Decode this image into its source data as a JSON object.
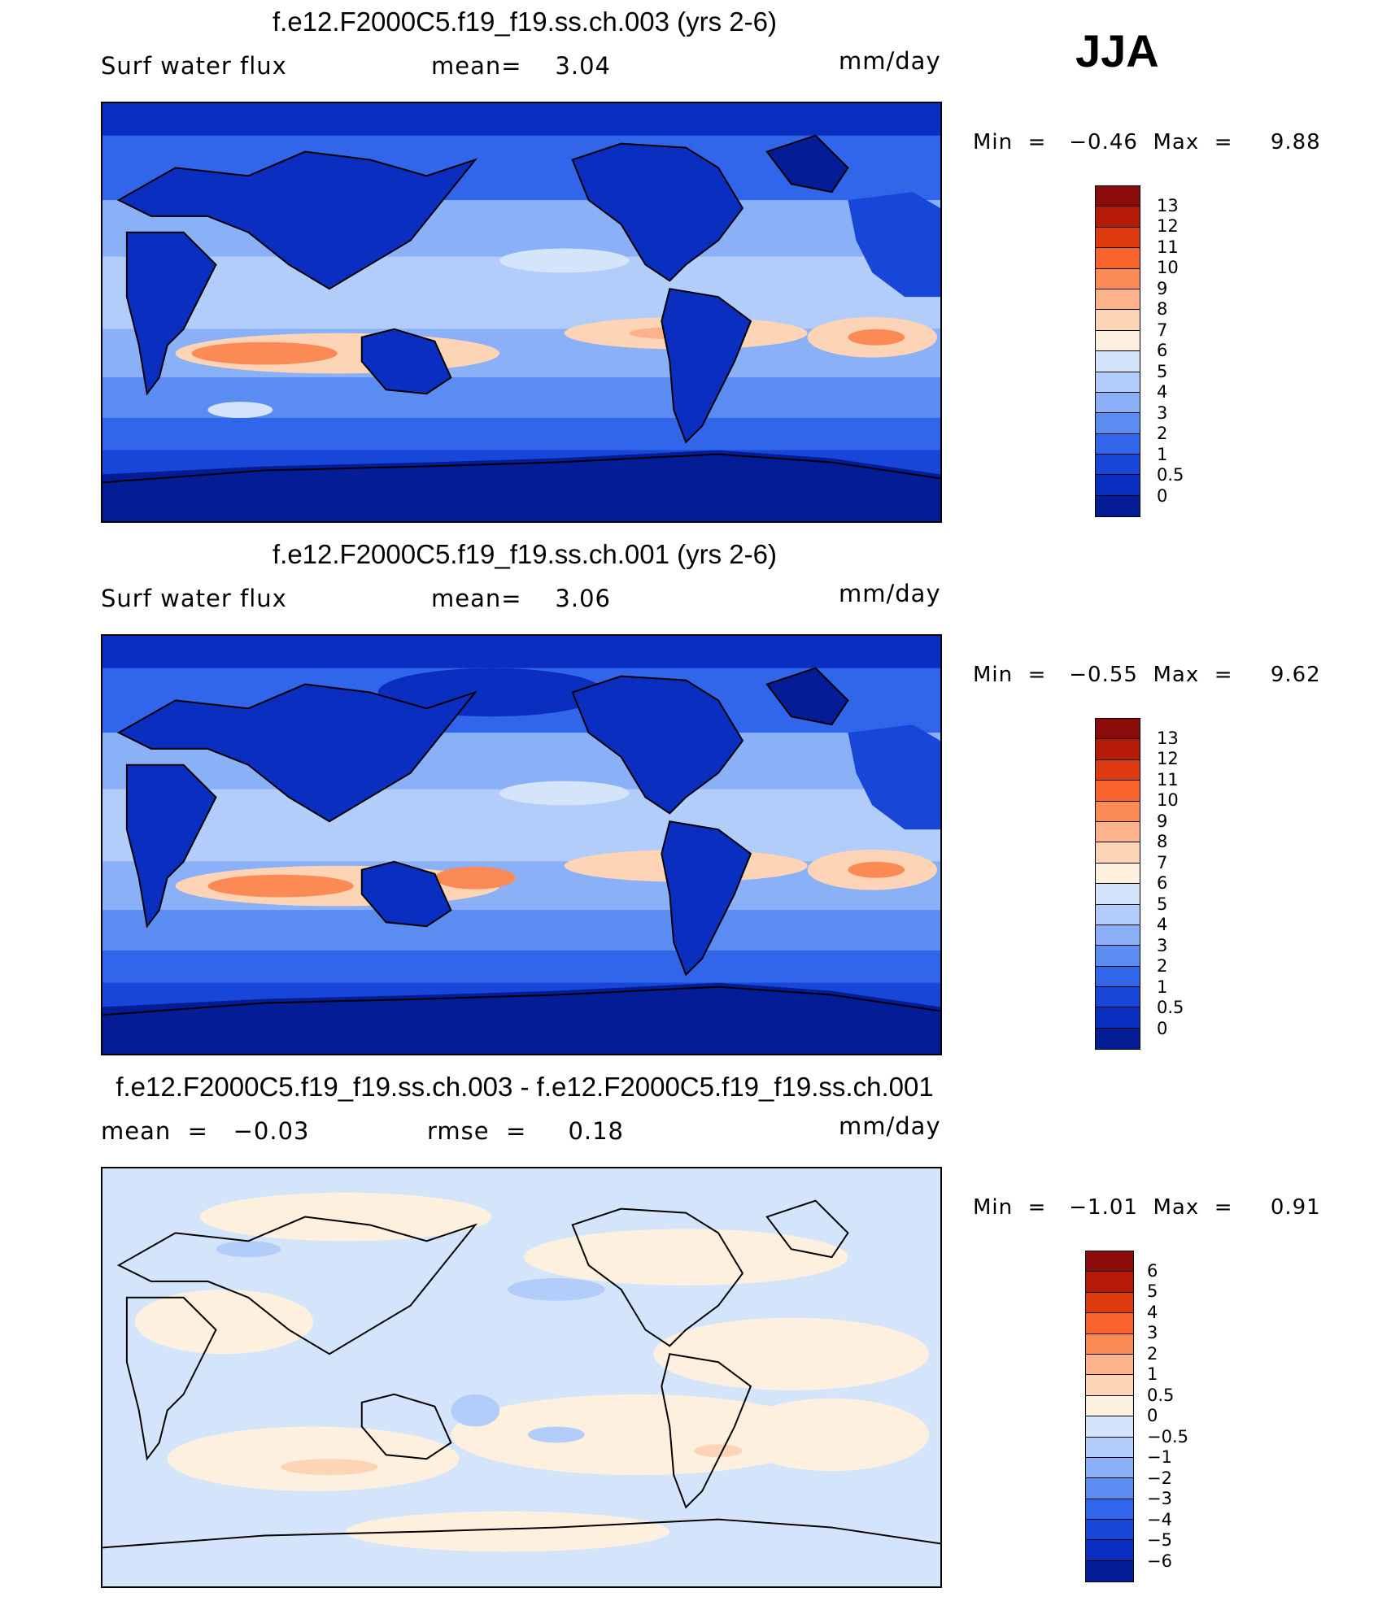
{
  "season": "JJA",
  "panels": [
    {
      "title": "f.e12.F2000C5.f19_f19.ss.ch.003 (yrs 2-6)",
      "left_text": "Surf water flux",
      "mid_text": "mean=    3.04",
      "units": "mm/day",
      "minmax": "Min  =   −0.46  Max  =     9.88",
      "colorbar_labels": [
        "13",
        "12",
        "11",
        "10",
        "9",
        "8",
        "7",
        "6",
        "5",
        "4",
        "3",
        "2",
        "1",
        "0.5",
        "0"
      ],
      "colors": [
        "#8b0a0a",
        "#b51a06",
        "#de3a10",
        "#f8622c",
        "#fb8a55",
        "#fcb38c",
        "#fed4b7",
        "#fef0df",
        "#d4e5fb",
        "#b2cdf9",
        "#8ab0f7",
        "#5b8cf1",
        "#3165ea",
        "#1846d9",
        "#0a2ec0",
        "#041c96"
      ],
      "legend_colors_order": "top-to-bottom",
      "chart_data": {
        "type": "heatmap",
        "field": "Surf water flux",
        "units": "mm/day",
        "mean": 3.04,
        "min": -0.46,
        "max": 9.88,
        "contour_levels": [
          0,
          0.5,
          1,
          2,
          3,
          4,
          5,
          6,
          7,
          8,
          9,
          10,
          11,
          12,
          13
        ]
      }
    },
    {
      "title": "f.e12.F2000C5.f19_f19.ss.ch.001 (yrs 2-6)",
      "left_text": "Surf water flux",
      "mid_text": "mean=    3.06",
      "units": "mm/day",
      "minmax": "Min  =   −0.55  Max  =     9.62",
      "colorbar_labels": [
        "13",
        "12",
        "11",
        "10",
        "9",
        "8",
        "7",
        "6",
        "5",
        "4",
        "3",
        "2",
        "1",
        "0.5",
        "0"
      ],
      "colors": [
        "#8b0a0a",
        "#b51a06",
        "#de3a10",
        "#f8622c",
        "#fb8a55",
        "#fcb38c",
        "#fed4b7",
        "#fef0df",
        "#d4e5fb",
        "#b2cdf9",
        "#8ab0f7",
        "#5b8cf1",
        "#3165ea",
        "#1846d9",
        "#0a2ec0",
        "#041c96"
      ],
      "chart_data": {
        "type": "heatmap",
        "field": "Surf water flux",
        "units": "mm/day",
        "mean": 3.06,
        "min": -0.55,
        "max": 9.62,
        "contour_levels": [
          0,
          0.5,
          1,
          2,
          3,
          4,
          5,
          6,
          7,
          8,
          9,
          10,
          11,
          12,
          13
        ]
      }
    },
    {
      "title": "f.e12.F2000C5.f19_f19.ss.ch.003 - f.e12.F2000C5.f19_f19.ss.ch.001",
      "left_text": "mean  =   −0.03",
      "mid_text": "rmse  =     0.18",
      "units": "mm/day",
      "minmax": "Min  =   −1.01  Max  =     0.91",
      "colorbar_labels": [
        "6",
        "5",
        "4",
        "3",
        "2",
        "1",
        "0.5",
        "0",
        "−0.5",
        "−1",
        "−2",
        "−3",
        "−4",
        "−5",
        "−6"
      ],
      "colors": [
        "#8b0a0a",
        "#b51a06",
        "#de3a10",
        "#f8622c",
        "#fb8a55",
        "#fcb38c",
        "#fed4b7",
        "#fef0df",
        "#d4e5fb",
        "#b2cdf9",
        "#8ab0f7",
        "#5b8cf1",
        "#3165ea",
        "#1846d9",
        "#0a2ec0",
        "#041c96"
      ],
      "chart_data": {
        "type": "heatmap",
        "field": "difference",
        "units": "mm/day",
        "mean": -0.03,
        "rmse": 0.18,
        "min": -1.01,
        "max": 0.91,
        "contour_levels": [
          -6,
          -5,
          -4,
          -3,
          -2,
          -1,
          -0.5,
          0,
          0.5,
          1,
          2,
          3,
          4,
          5,
          6
        ]
      }
    }
  ]
}
